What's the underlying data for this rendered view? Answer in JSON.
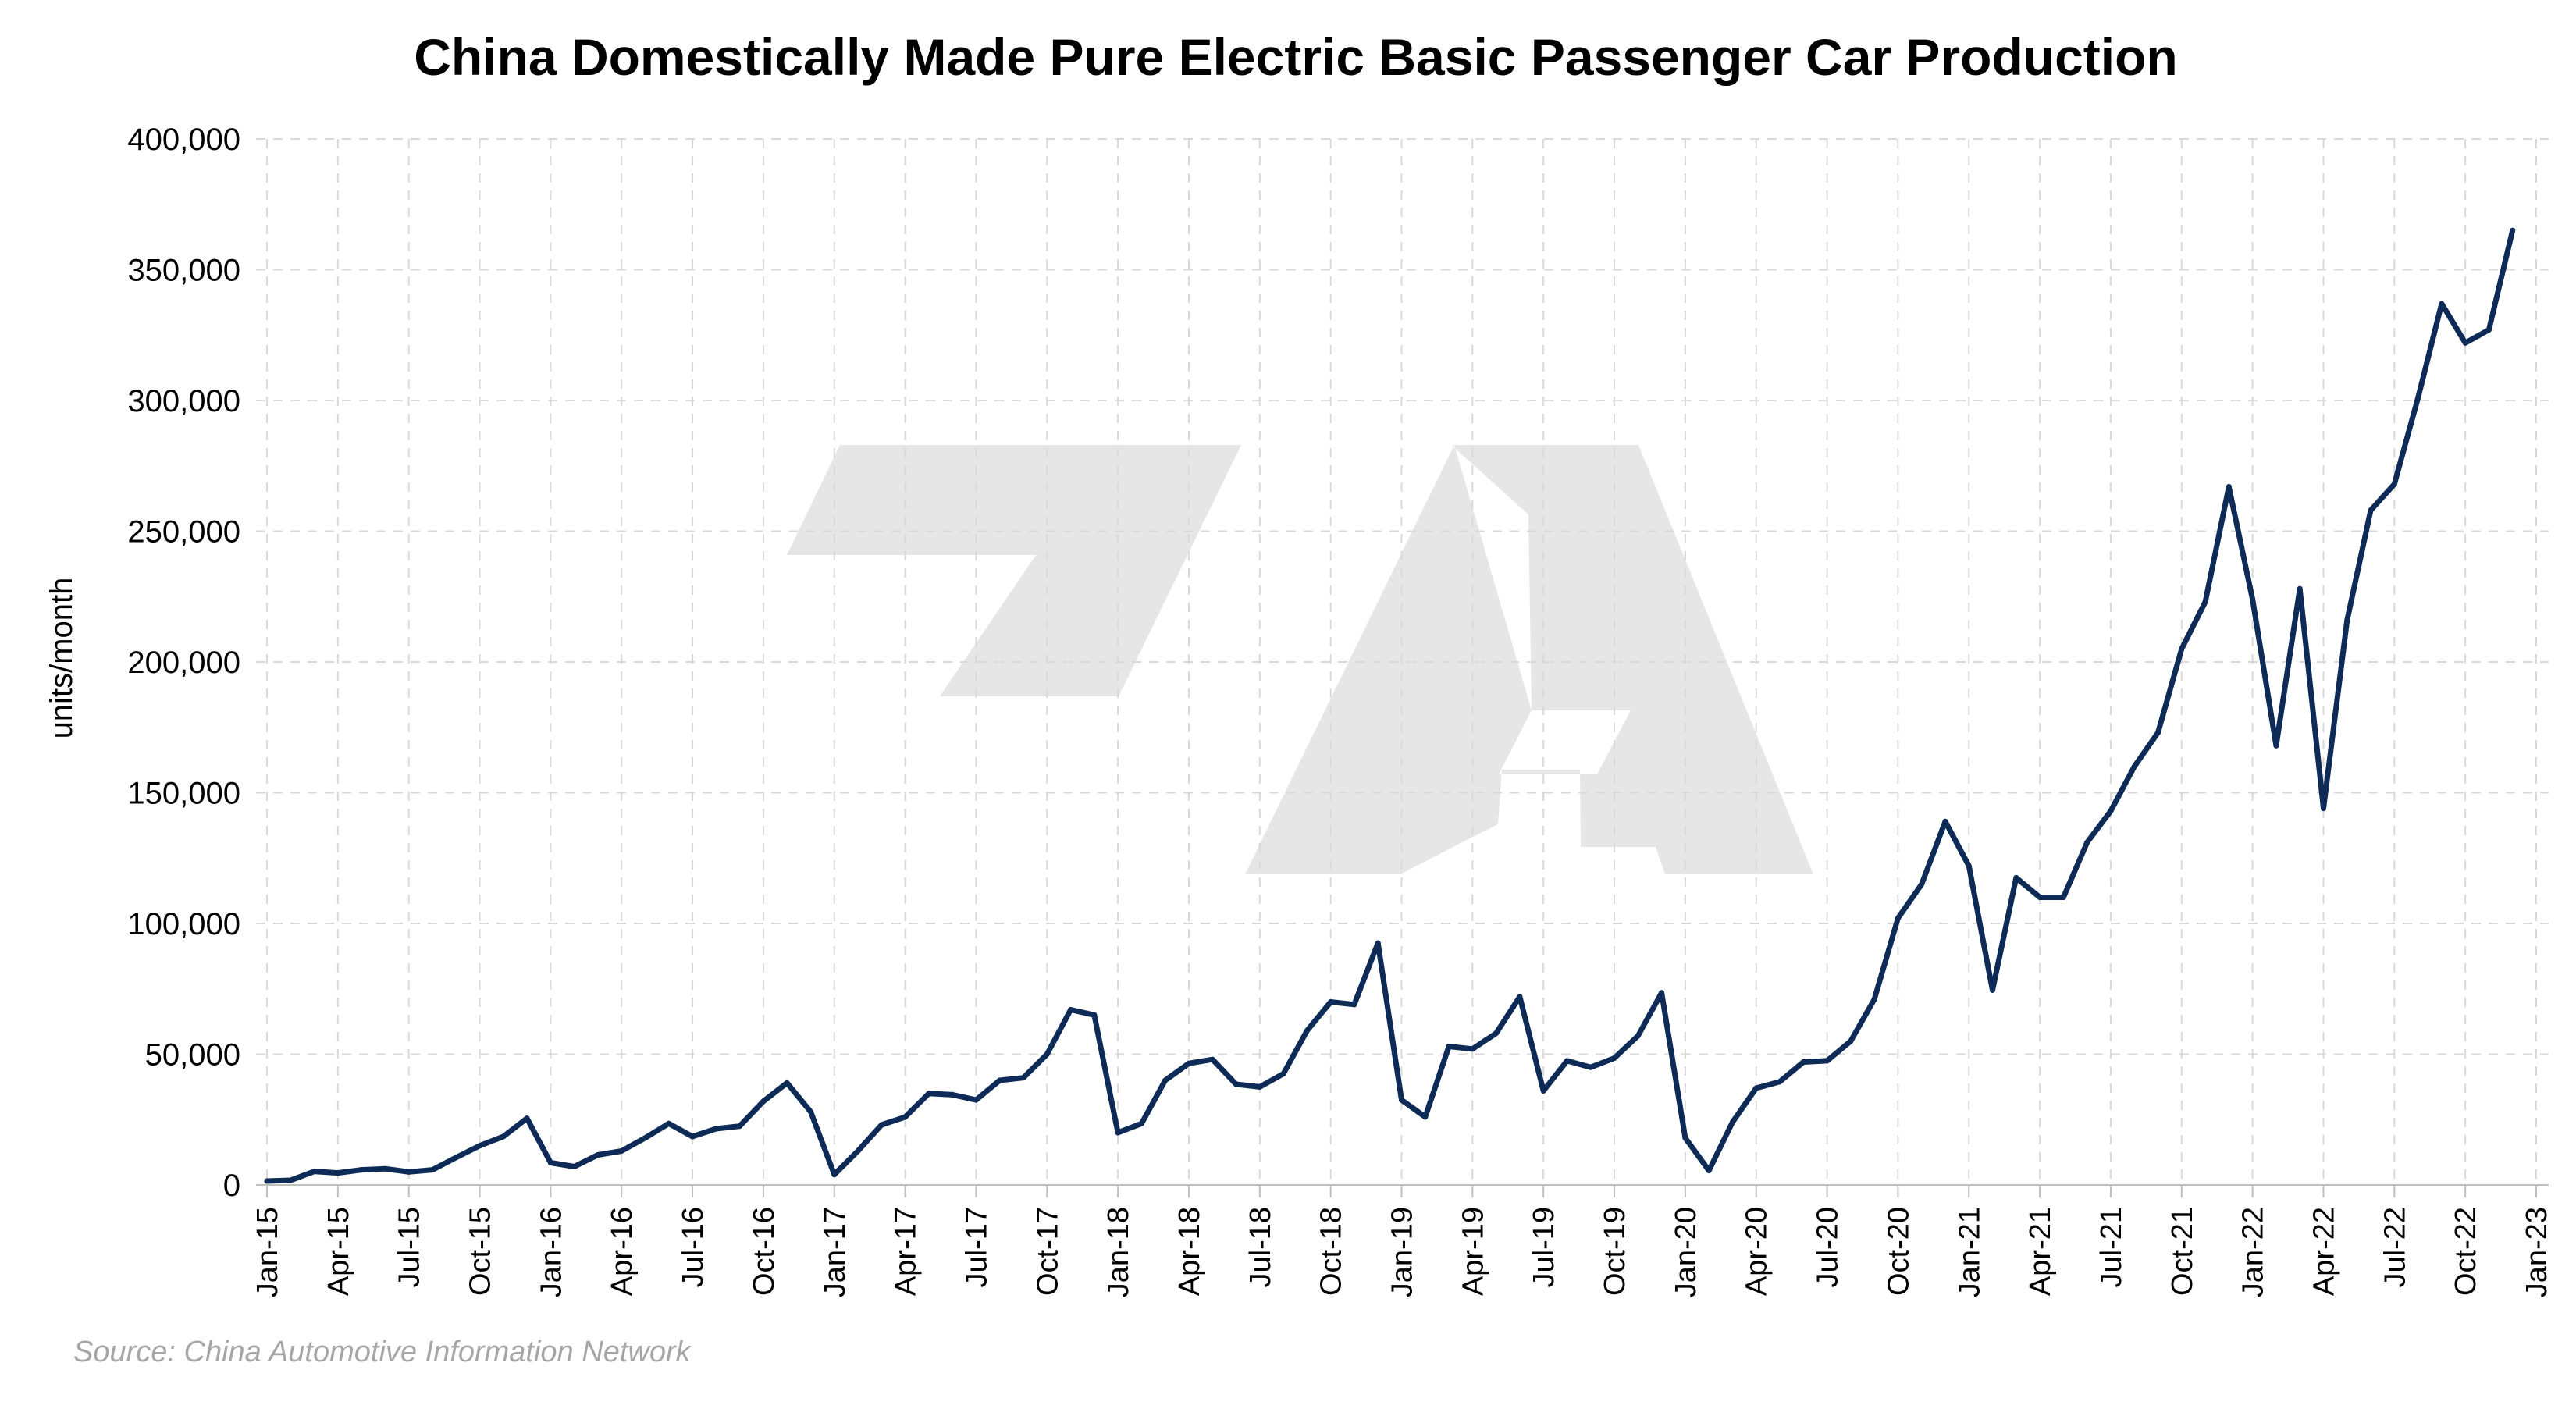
{
  "chart_data": {
    "type": "line",
    "title": "China Domestically Made Pure Electric Basic Passenger Car Production",
    "ylabel": "units/month",
    "xlabel": "",
    "source": "Source: China Automotive Information Network",
    "ylim": [
      0,
      400000
    ],
    "yticks": [
      "0",
      "50,000",
      "100,000",
      "150,000",
      "200,000",
      "250,000",
      "300,000",
      "350,000",
      "400,000"
    ],
    "ytick_values": [
      0,
      50000,
      100000,
      150000,
      200000,
      250000,
      300000,
      350000,
      400000
    ],
    "xticks": [
      "Jan-15",
      "Apr-15",
      "Jul-15",
      "Oct-15",
      "Jan-16",
      "Apr-16",
      "Jul-16",
      "Oct-16",
      "Jan-17",
      "Apr-17",
      "Jul-17",
      "Oct-17",
      "Jan-18",
      "Apr-18",
      "Jul-18",
      "Oct-18",
      "Jan-19",
      "Apr-19",
      "Jul-19",
      "Oct-19",
      "Jan-20",
      "Apr-20",
      "Jul-20",
      "Oct-20",
      "Jan-21",
      "Apr-21",
      "Jul-21",
      "Oct-21",
      "Jan-22",
      "Apr-22",
      "Jul-22",
      "Oct-22",
      "Jan-23"
    ],
    "grid": true,
    "line_color": "#0d2b56",
    "watermark_color": "#e6e6e6",
    "x": [
      "Jan-15",
      "Feb-15",
      "Mar-15",
      "Apr-15",
      "May-15",
      "Jun-15",
      "Jul-15",
      "Aug-15",
      "Sep-15",
      "Oct-15",
      "Nov-15",
      "Dec-15",
      "Jan-16",
      "Feb-16",
      "Mar-16",
      "Apr-16",
      "May-16",
      "Jun-16",
      "Jul-16",
      "Aug-16",
      "Sep-16",
      "Oct-16",
      "Nov-16",
      "Dec-16",
      "Jan-17",
      "Feb-17",
      "Mar-17",
      "Apr-17",
      "May-17",
      "Jun-17",
      "Jul-17",
      "Aug-17",
      "Sep-17",
      "Oct-17",
      "Nov-17",
      "Dec-17",
      "Jan-18",
      "Feb-18",
      "Mar-18",
      "Apr-18",
      "May-18",
      "Jun-18",
      "Jul-18",
      "Aug-18",
      "Sep-18",
      "Oct-18",
      "Nov-18",
      "Dec-18",
      "Jan-19",
      "Feb-19",
      "Mar-19",
      "Apr-19",
      "May-19",
      "Jun-19",
      "Jul-19",
      "Aug-19",
      "Sep-19",
      "Oct-19",
      "Nov-19",
      "Dec-19",
      "Jan-20",
      "Feb-20",
      "Mar-20",
      "Apr-20",
      "May-20",
      "Jun-20",
      "Jul-20",
      "Aug-20",
      "Sep-20",
      "Oct-20",
      "Nov-20",
      "Dec-20",
      "Jan-21",
      "Feb-21",
      "Mar-21",
      "Apr-21",
      "May-21",
      "Jun-21",
      "Jul-21",
      "Aug-21",
      "Sep-21",
      "Oct-21",
      "Nov-21",
      "Dec-21",
      "Jan-22",
      "Feb-22",
      "Mar-22",
      "Apr-22",
      "May-22",
      "Jun-22",
      "Jul-22",
      "Aug-22",
      "Sep-22",
      "Oct-22",
      "Nov-22",
      "Dec-22"
    ],
    "values": [
      1500,
      1800,
      5200,
      4600,
      5800,
      6200,
      5000,
      5800,
      10500,
      15000,
      18500,
      25500,
      8500,
      7000,
      11500,
      13000,
      18000,
      23500,
      18500,
      21500,
      22500,
      32000,
      39000,
      28000,
      4000,
      13000,
      23000,
      26000,
      35000,
      34500,
      32500,
      40000,
      41000,
      50000,
      67000,
      65000,
      20000,
      23500,
      40000,
      46500,
      48000,
      38500,
      37500,
      42500,
      59000,
      70000,
      69000,
      92500,
      32500,
      26000,
      53000,
      52000,
      58000,
      72000,
      36000,
      47500,
      45000,
      48500,
      57000,
      73500,
      18000,
      5500,
      24000,
      37000,
      39500,
      47000,
      47500,
      55000,
      71000,
      102000,
      115000,
      139000,
      122000,
      74500,
      117500,
      110000,
      110000,
      131000,
      143000,
      160000,
      173000,
      205000,
      223000,
      267000,
      224000,
      168000,
      228000,
      144000,
      216000,
      258000,
      268000,
      301000,
      337000,
      322000,
      327000,
      365000
    ]
  }
}
